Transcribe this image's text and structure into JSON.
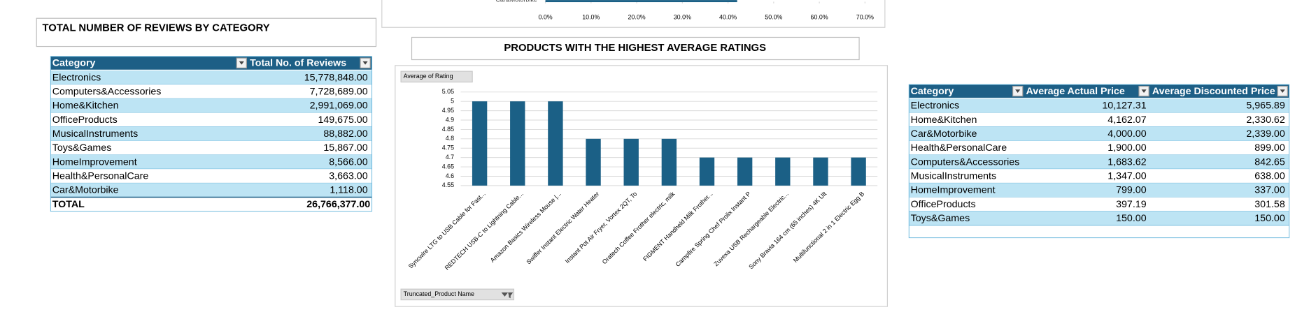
{
  "chart_data": [
    {
      "type": "bar",
      "title": "PRODUCTS WITH THE HIGHEST AVERAGE RATINGS",
      "field_button": "Average of Rating",
      "axis_field_button": "Truncated_Product Name",
      "categories": [
        "Syncwire LTG to USB Cable for Fast...",
        "REDTECH USB-C to Lightning Cable...",
        "Amazon Basics Wireless Mouse |...",
        "Swiffer Instant Electric Water Heater",
        "Instant Pot Air Fryer, Vortex 2QT, To",
        "Oratech Coffee Frother electric, milk",
        "FIGMENT Handheld Milk Frother...",
        "Campfire Spring Chef Prolix Instant P",
        "Zuvexa USB Rechargeable Electric...",
        "Sony Bravia 164 cm (65 inches) 4K Ult",
        "Multifunctional 2 in 1 Electric Egg B"
      ],
      "values": [
        5,
        5,
        5,
        4.8,
        4.8,
        4.8,
        4.7,
        4.7,
        4.7,
        4.7,
        4.7
      ],
      "color": "#1b6086",
      "ylim": [
        4.55,
        5.05
      ],
      "yticks": [
        4.55,
        4.6,
        4.65,
        4.7,
        4.75,
        4.8,
        4.85,
        4.9,
        4.95,
        5,
        5.05
      ],
      "grid": true
    },
    {
      "type": "hbar",
      "categories": [
        "Car&Motorbike"
      ],
      "values": [
        42
      ],
      "color": "#1b6086",
      "xlim": [
        0,
        70
      ],
      "xticks": [
        {
          "value": 0,
          "label": "0.0%"
        },
        {
          "value": 10,
          "label": "10.0%"
        },
        {
          "value": 20,
          "label": "20.0%"
        },
        {
          "value": 30,
          "label": "30.0%"
        },
        {
          "value": 40,
          "label": "40.0%"
        },
        {
          "value": 50,
          "label": "50.0%"
        },
        {
          "value": 60,
          "label": "60.0%"
        },
        {
          "value": 70,
          "label": "70.0%"
        }
      ]
    }
  ],
  "reviews_table": {
    "title": "TOTAL NUMBER OF REVIEWS BY CATEGORY",
    "headers": [
      "Category",
      "Total No. of Reviews"
    ],
    "rows": [
      [
        "Electronics",
        "15,778,848.00"
      ],
      [
        "Computers&Accessories",
        "7,728,689.00"
      ],
      [
        "Home&Kitchen",
        "2,991,069.00"
      ],
      [
        "OfficeProducts",
        "149,675.00"
      ],
      [
        "MusicalInstruments",
        "88,882.00"
      ],
      [
        "Toys&Games",
        "15,867.00"
      ],
      [
        "HomeImprovement",
        "8,566.00"
      ],
      [
        "Health&PersonalCare",
        "3,663.00"
      ],
      [
        "Car&Motorbike",
        "1,118.00"
      ]
    ],
    "total": [
      "TOTAL",
      "26,766,377.00"
    ]
  },
  "price_table": {
    "headers": [
      "Category",
      "Average Actual Price",
      "Average Discounted Price"
    ],
    "rows": [
      [
        "Electronics",
        "10,127.31",
        "5,965.89"
      ],
      [
        "Home&Kitchen",
        "4,162.07",
        "2,330.62"
      ],
      [
        "Car&Motorbike",
        "4,000.00",
        "2,339.00"
      ],
      [
        "Health&PersonalCare",
        "1,900.00",
        "899.00"
      ],
      [
        "Computers&Accessories",
        "1,683.62",
        "842.65"
      ],
      [
        "MusicalInstruments",
        "1,347.00",
        "638.00"
      ],
      [
        "HomeImprovement",
        "799.00",
        "337.00"
      ],
      [
        "OfficeProducts",
        "397.19",
        "301.58"
      ],
      [
        "Toys&Games",
        "150.00",
        "150.00"
      ]
    ]
  }
}
